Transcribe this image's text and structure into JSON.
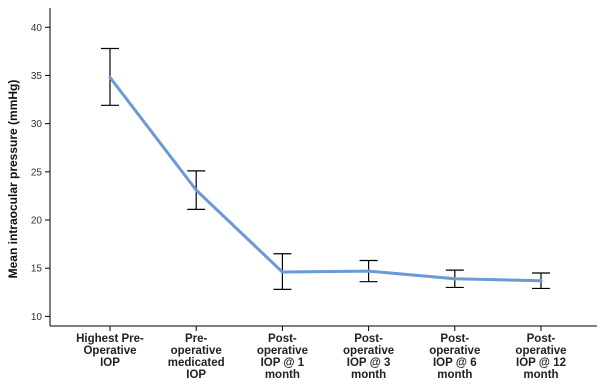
{
  "chart_data": {
    "type": "line",
    "title": "",
    "xlabel": "",
    "ylabel": "Mean intraocular pressure (mmHg)",
    "ylim": [
      9,
      42
    ],
    "yticks": [
      10,
      15,
      20,
      25,
      30,
      35,
      40
    ],
    "grid": false,
    "categories": [
      [
        "Highest Pre-",
        "Operative",
        "IOP"
      ],
      [
        "Pre-",
        "operative",
        "medicated",
        "IOP"
      ],
      [
        "Post-",
        "operative",
        "IOP @ 1",
        "month"
      ],
      [
        "Post-",
        "operative",
        "IOP @ 3",
        "month"
      ],
      [
        "Post-",
        "operative",
        "IOP @ 6",
        "month"
      ],
      [
        "Post-",
        "operative",
        "IOP @ 12",
        "month"
      ]
    ],
    "series": [
      {
        "values": [
          34.8,
          23.1,
          14.6,
          14.7,
          13.9,
          13.7
        ],
        "error_low": [
          31.9,
          21.1,
          12.8,
          13.6,
          13.0,
          12.9
        ],
        "error_high": [
          37.8,
          25.1,
          16.5,
          15.8,
          14.8,
          14.5
        ],
        "color": "#6a9bd4"
      }
    ]
  }
}
